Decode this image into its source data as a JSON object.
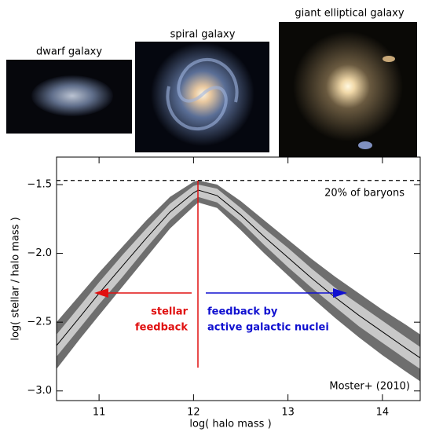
{
  "captions": {
    "dwarf": "dwarf galaxy",
    "spiral": "spiral galaxy",
    "elliptical": "giant elliptical galaxy"
  },
  "chart_data": {
    "type": "line",
    "xlabel": "log( halo mass )",
    "ylabel": "log( stellar / halo mass )",
    "xlim": [
      10.55,
      14.4
    ],
    "ylim": [
      -3.07,
      -1.3
    ],
    "xticks": [
      11,
      12,
      13,
      14
    ],
    "yticks": [
      {
        "value": -3.0,
        "label": "−3.0"
      },
      {
        "value": -2.5,
        "label": "−2.5"
      },
      {
        "value": -2.0,
        "label": "−2.0"
      },
      {
        "value": -1.5,
        "label": "−1.5"
      }
    ],
    "x": [
      10.55,
      10.8,
      11,
      11.25,
      11.5,
      11.75,
      12,
      12.05,
      12.25,
      12.5,
      12.75,
      13,
      13.25,
      13.5,
      13.75,
      14,
      14.25,
      14.4
    ],
    "series": [
      {
        "color": "#000000",
        "values": [
          -2.67,
          -2.46,
          -2.29,
          -2.09,
          -1.89,
          -1.7,
          -1.56,
          -1.54,
          -1.58,
          -1.72,
          -1.88,
          -2.03,
          -2.18,
          -2.32,
          -2.45,
          -2.57,
          -2.69,
          -2.76
        ]
      }
    ],
    "bands": [
      {
        "color": "#6e6e6e",
        "upper": [
          -2.5,
          -2.3,
          -2.14,
          -1.95,
          -1.76,
          -1.59,
          -1.48,
          -1.47,
          -1.5,
          -1.62,
          -1.76,
          -1.9,
          -2.04,
          -2.17,
          -2.29,
          -2.41,
          -2.52,
          -2.59
        ],
        "lower": [
          -2.84,
          -2.62,
          -2.45,
          -2.24,
          -2.03,
          -1.82,
          -1.66,
          -1.63,
          -1.67,
          -1.83,
          -2.0,
          -2.16,
          -2.32,
          -2.47,
          -2.61,
          -2.74,
          -2.86,
          -2.93
        ]
      },
      {
        "color": "#c8c8c8",
        "upper": [
          -2.59,
          -2.38,
          -2.21,
          -2.01,
          -1.82,
          -1.64,
          -1.51,
          -1.5,
          -1.53,
          -1.67,
          -1.82,
          -1.96,
          -2.11,
          -2.25,
          -2.37,
          -2.49,
          -2.61,
          -2.68
        ],
        "lower": [
          -2.75,
          -2.54,
          -2.37,
          -2.17,
          -1.96,
          -1.76,
          -1.61,
          -1.59,
          -1.63,
          -1.77,
          -1.94,
          -2.1,
          -2.25,
          -2.39,
          -2.53,
          -2.65,
          -2.77,
          -2.84
        ]
      }
    ],
    "reference_line": {
      "value": -1.47,
      "label": "20% of baryons"
    },
    "annotations": {
      "left": [
        "stellar",
        "feedback"
      ],
      "right": [
        "feedback by",
        "active galactic nuclei"
      ],
      "source": "Moster+ (2010)"
    }
  }
}
